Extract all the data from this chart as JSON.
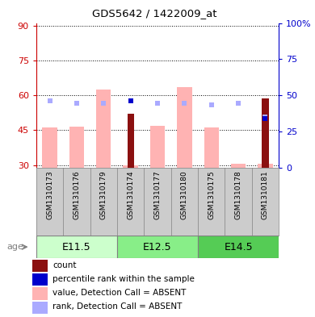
{
  "title": "GDS5642 / 1422009_at",
  "samples": [
    "GSM1310173",
    "GSM1310176",
    "GSM1310179",
    "GSM1310174",
    "GSM1310177",
    "GSM1310180",
    "GSM1310175",
    "GSM1310178",
    "GSM1310181"
  ],
  "age_groups": [
    {
      "label": "E11.5",
      "start": 0,
      "end": 3
    },
    {
      "label": "E12.5",
      "start": 3,
      "end": 6
    },
    {
      "label": "E14.5",
      "start": 6,
      "end": 9
    }
  ],
  "age_colors": [
    "#ccffcc",
    "#88ee88",
    "#55cc55"
  ],
  "ylim_left": [
    29,
    91
  ],
  "yticks_left": [
    30,
    45,
    60,
    75,
    90
  ],
  "yticks_right": [
    0,
    25,
    50,
    75,
    100
  ],
  "ytick_labels_right": [
    "0",
    "25",
    "50",
    "75",
    "100%"
  ],
  "value_bars": [
    46.0,
    46.5,
    62.5,
    30.0,
    47.0,
    63.5,
    46.0,
    30.5,
    30.5
  ],
  "rank_dots_y_left": [
    57.5,
    56.5,
    56.5,
    57.5,
    56.5,
    56.5,
    56.0,
    56.5,
    50.5
  ],
  "count_bars": [
    30.0,
    30.0,
    30.0,
    52.0,
    30.0,
    30.0,
    30.0,
    30.0,
    58.5
  ],
  "has_dark_red": [
    false,
    false,
    false,
    true,
    false,
    false,
    false,
    false,
    true
  ],
  "blue_dot_y_left": [
    57.5,
    56.5,
    56.5,
    57.5,
    56.5,
    56.5,
    56.0,
    56.5,
    50.0
  ],
  "has_blue_dot": [
    false,
    false,
    false,
    true,
    false,
    false,
    false,
    false,
    true
  ],
  "color_value_bar": "#ffb3b3",
  "color_count_bar": "#8b1010",
  "color_rank_dot": "#aaaaff",
  "color_blue_dot": "#0000cc",
  "left_axis_color": "#cc0000",
  "right_axis_color": "#0000cc",
  "legend_items": [
    {
      "color": "#8b1010",
      "label": "count"
    },
    {
      "color": "#0000cc",
      "label": "percentile rank within the sample"
    },
    {
      "color": "#ffb3b3",
      "label": "value, Detection Call = ABSENT"
    },
    {
      "color": "#aaaaff",
      "label": "rank, Detection Call = ABSENT"
    }
  ]
}
